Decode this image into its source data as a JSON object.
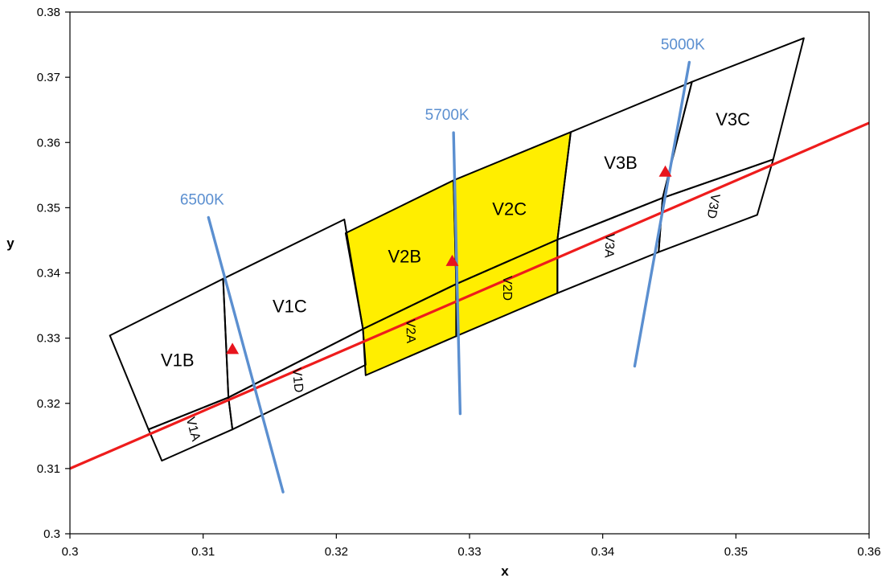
{
  "chart_data": {
    "type": "scatter",
    "title": "",
    "xlabel": "x",
    "ylabel": "y",
    "xlim": [
      0.3,
      0.36
    ],
    "ylim": [
      0.3,
      0.38
    ],
    "x_ticks": [
      "0.3",
      "0.31",
      "0.32",
      "0.33",
      "0.34",
      "0.35",
      "0.36"
    ],
    "y_ticks": [
      "0.3",
      "0.31",
      "0.32",
      "0.33",
      "0.34",
      "0.35",
      "0.36",
      "0.37",
      "0.38"
    ],
    "grid": false,
    "colors": {
      "locus": "#ee1c1c",
      "cct_lines": "#5b8fd0",
      "cct_labels": "#5b8fd0",
      "highlight_fill": "#ffee00",
      "bin_outline": "#000000",
      "marker": "#e8141d"
    },
    "blackbody_locus": [
      [
        0.3,
        0.31
      ],
      [
        0.36,
        0.363
      ]
    ],
    "bins": [
      {
        "label": "V1B",
        "polygon": [
          [
            0.303,
            0.3304
          ],
          [
            0.3059,
            0.316
          ],
          [
            0.3119,
            0.3209
          ],
          [
            0.3115,
            0.3391
          ]
        ]
      },
      {
        "label": "V1C",
        "polygon": [
          [
            0.3115,
            0.3391
          ],
          [
            0.3119,
            0.3209
          ],
          [
            0.322,
            0.3314
          ],
          [
            0.3206,
            0.3482
          ]
        ]
      },
      {
        "label": "V1A",
        "polygon": [
          [
            0.3059,
            0.316
          ],
          [
            0.3069,
            0.3112
          ],
          [
            0.3122,
            0.316
          ],
          [
            0.3119,
            0.3209
          ]
        ]
      },
      {
        "label": "V1D",
        "polygon": [
          [
            0.3119,
            0.3209
          ],
          [
            0.3122,
            0.316
          ],
          [
            0.3222,
            0.3259
          ],
          [
            0.322,
            0.3314
          ]
        ]
      },
      {
        "label": "V2B",
        "polygon": [
          [
            0.3207,
            0.3461
          ],
          [
            0.322,
            0.3314
          ],
          [
            0.329,
            0.3383
          ],
          [
            0.3288,
            0.3542
          ]
        ]
      },
      {
        "label": "V2C",
        "polygon": [
          [
            0.3288,
            0.3542
          ],
          [
            0.329,
            0.3383
          ],
          [
            0.3366,
            0.3451
          ],
          [
            0.3376,
            0.3616
          ]
        ]
      },
      {
        "label": "V2A",
        "polygon": [
          [
            0.322,
            0.3314
          ],
          [
            0.3222,
            0.3243
          ],
          [
            0.329,
            0.3303
          ],
          [
            0.329,
            0.3383
          ]
        ]
      },
      {
        "label": "V2D",
        "polygon": [
          [
            0.329,
            0.3383
          ],
          [
            0.329,
            0.3303
          ],
          [
            0.3366,
            0.3369
          ],
          [
            0.3366,
            0.3451
          ]
        ]
      },
      {
        "label": "V3B",
        "polygon": [
          [
            0.3376,
            0.3616
          ],
          [
            0.3366,
            0.3451
          ],
          [
            0.3445,
            0.3515
          ],
          [
            0.3467,
            0.3693
          ]
        ]
      },
      {
        "label": "V3C",
        "polygon": [
          [
            0.3467,
            0.3693
          ],
          [
            0.3445,
            0.3515
          ],
          [
            0.3528,
            0.3574
          ],
          [
            0.3551,
            0.376
          ]
        ]
      },
      {
        "label": "V3A",
        "polygon": [
          [
            0.3366,
            0.3451
          ],
          [
            0.3366,
            0.3369
          ],
          [
            0.3442,
            0.3432
          ],
          [
            0.3445,
            0.3515
          ]
        ]
      },
      {
        "label": "V3D",
        "polygon": [
          [
            0.3445,
            0.3515
          ],
          [
            0.3442,
            0.3432
          ],
          [
            0.3516,
            0.3489
          ],
          [
            0.3528,
            0.3574
          ]
        ]
      }
    ],
    "highlighted_bins": [
      "V2B",
      "V2C",
      "V2A",
      "V2D"
    ],
    "cct_lines": [
      {
        "label": "6500K",
        "points": [
          [
            0.3104,
            0.3485
          ],
          [
            0.316,
            0.3064
          ]
        ]
      },
      {
        "label": "5700K",
        "points": [
          [
            0.3288,
            0.3615
          ],
          [
            0.3293,
            0.3184
          ]
        ]
      },
      {
        "label": "5000K",
        "points": [
          [
            0.3465,
            0.3723
          ],
          [
            0.3424,
            0.3257
          ]
        ]
      }
    ],
    "markers": [
      {
        "x": 0.3122,
        "y": 0.3283
      },
      {
        "x": 0.3287,
        "y": 0.3418
      },
      {
        "x": 0.3447,
        "y": 0.3555
      }
    ]
  }
}
